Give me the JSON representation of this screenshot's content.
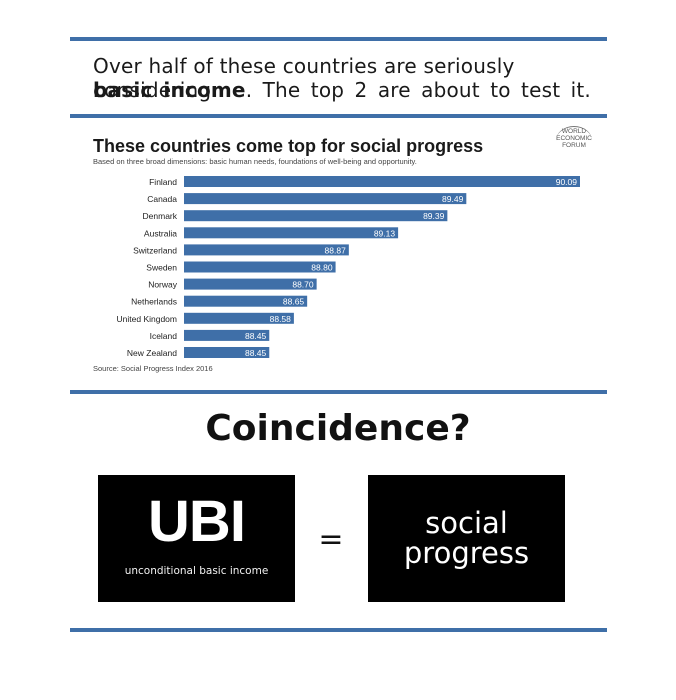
{
  "headline": {
    "line1": "Over half of these countries are seriously considering",
    "line2_bold": "basic income",
    "line2_rest": ". The top 2 are about to test it."
  },
  "chart_data": {
    "type": "bar",
    "orientation": "horizontal",
    "title": "These countries come top for social progress",
    "subtitle": "Based on three broad dimensions: basic human needs, foundations of well-being and opportunity.",
    "categories": [
      "Finland",
      "Canada",
      "Denmark",
      "Australia",
      "Switzerland",
      "Sweden",
      "Norway",
      "Netherlands",
      "United Kingdom",
      "Iceland",
      "New Zealand"
    ],
    "values": [
      90.09,
      89.49,
      89.39,
      89.13,
      88.87,
      88.8,
      88.7,
      88.65,
      88.58,
      88.45,
      88.45
    ],
    "value_labels": [
      "90.09",
      "89.49",
      "89.39",
      "89.13",
      "88.87",
      "88.80",
      "88.70",
      "88.65",
      "88.58",
      "88.45",
      "88.45"
    ],
    "source": "Source: Social Progress Index 2016",
    "bar_color": "#3f6fa8"
  },
  "logo": {
    "line1": "WORLD",
    "line2": "ECONOMIC",
    "line3": "FORUM"
  },
  "coincidence": "Coincidence?",
  "ubi_box": {
    "big": "UBI",
    "small": "unconditional basic income"
  },
  "equals": "=",
  "social_box": {
    "line1": "social",
    "line2": "progress"
  },
  "colors": {
    "rule": "#3f6fa8",
    "bar": "#3f6fa8",
    "box": "#000000"
  }
}
